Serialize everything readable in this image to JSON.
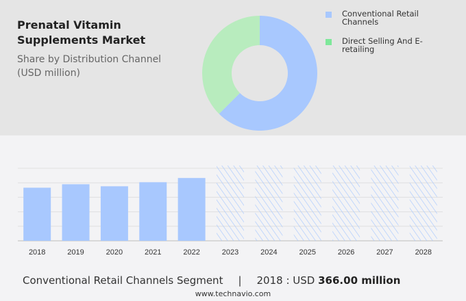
{
  "header": {
    "title": "Prenatal Vitamin Supplements Market",
    "subtitle": "Share by Distribution Channel (USD million)"
  },
  "donut": {
    "type": "pie",
    "segments": [
      {
        "name": "Conventional Retail Channels",
        "share": 62.5,
        "color": "#a8c8fe"
      },
      {
        "name": "Direct Selling And E-retailing",
        "share": 37.5,
        "color": "#b8ecbe"
      }
    ]
  },
  "legend": [
    {
      "label": "Conventional Retail Channels",
      "color": "#a8c8fe"
    },
    {
      "label": "Direct Selling And E-retailing",
      "color": "#7ee89a"
    }
  ],
  "chart_data": {
    "type": "bar",
    "categories": [
      "2018",
      "2019",
      "2020",
      "2021",
      "2022",
      "2023",
      "2024",
      "2025",
      "2026",
      "2027",
      "2028"
    ],
    "values": [
      366,
      390,
      376,
      404,
      433,
      null,
      null,
      null,
      null,
      null,
      null
    ],
    "forecast": [
      "2023",
      "2024",
      "2025",
      "2026",
      "2027",
      "2028"
    ],
    "ylim": [
      0,
      500
    ],
    "grid": true,
    "bar_color": "#a8c8fe",
    "xlabel": "",
    "ylabel": ""
  },
  "footer": {
    "segment": "Conventional Retail Channels Segment",
    "sep": "|",
    "year_label": "2018 : USD",
    "value": "366.00 million",
    "url": "www.technavio.com"
  }
}
